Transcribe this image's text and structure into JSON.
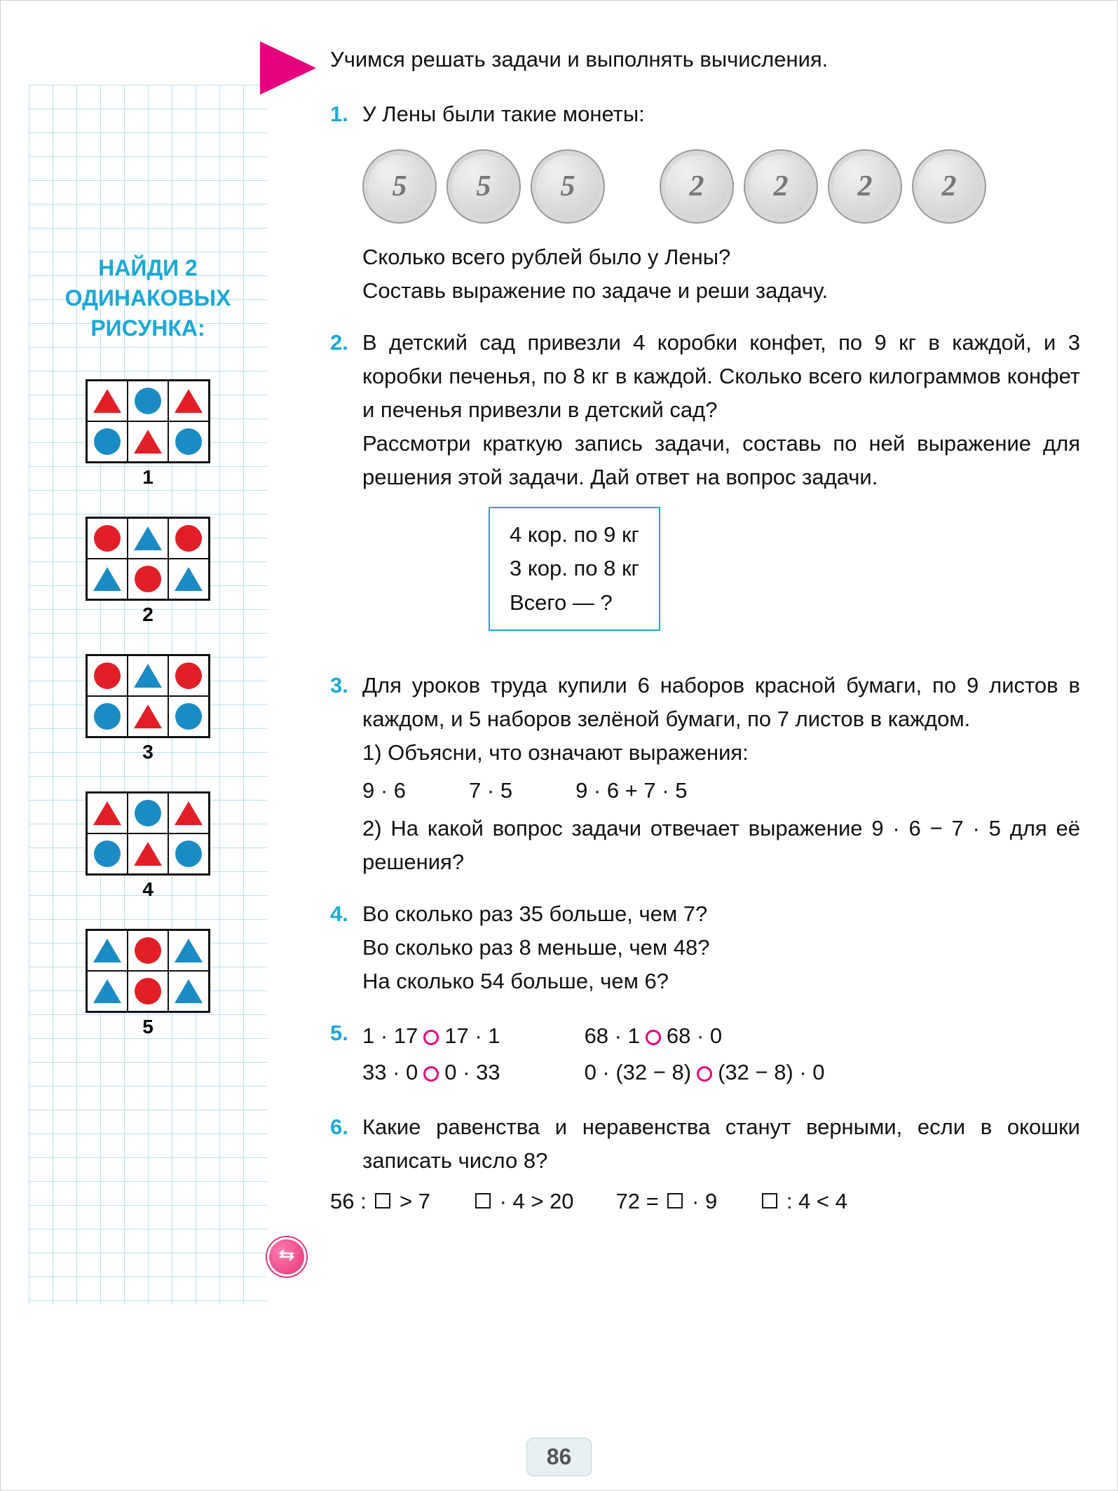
{
  "page_number": "86",
  "colors": {
    "accent": "#1ba8d6",
    "magenta": "#e6007e",
    "red": "#e21f26",
    "blue": "#1b8bc4",
    "grid": "#b8e0ee"
  },
  "sidebar": {
    "title_l1": "НАЙДИ 2",
    "title_l2": "ОДИНАКОВЫХ",
    "title_l3": "РИСУНКА:",
    "patterns": [
      {
        "label": "1",
        "cells": [
          [
            "T",
            "R"
          ],
          [
            "C",
            "B"
          ],
          [
            "T",
            "R"
          ],
          [
            "C",
            "B"
          ],
          [
            "T",
            "R"
          ],
          [
            "C",
            "B"
          ]
        ]
      },
      {
        "label": "2",
        "cells": [
          [
            "C",
            "R"
          ],
          [
            "T",
            "B"
          ],
          [
            "C",
            "R"
          ],
          [
            "T",
            "B"
          ],
          [
            "C",
            "R"
          ],
          [
            "T",
            "B"
          ]
        ]
      },
      {
        "label": "3",
        "cells": [
          [
            "C",
            "R"
          ],
          [
            "T",
            "B"
          ],
          [
            "C",
            "R"
          ],
          [
            "C",
            "B"
          ],
          [
            "T",
            "R"
          ],
          [
            "C",
            "B"
          ]
        ]
      },
      {
        "label": "4",
        "cells": [
          [
            "T",
            "R"
          ],
          [
            "C",
            "B"
          ],
          [
            "T",
            "R"
          ],
          [
            "C",
            "B"
          ],
          [
            "T",
            "R"
          ],
          [
            "C",
            "B"
          ]
        ]
      },
      {
        "label": "5",
        "cells": [
          [
            "T",
            "B"
          ],
          [
            "C",
            "R"
          ],
          [
            "T",
            "B"
          ],
          [
            "T",
            "B"
          ],
          [
            "C",
            "R"
          ],
          [
            "T",
            "B"
          ]
        ]
      }
    ]
  },
  "heading": "Учимся решать задачи и выполнять вычисления.",
  "p1": {
    "num": "1.",
    "intro": "У Лены были такие монеты:",
    "coins5": [
      "5",
      "5",
      "5"
    ],
    "coins2": [
      "2",
      "2",
      "2",
      "2"
    ],
    "q1": "Сколько всего рублей было у Лены?",
    "q2": "Составь выражение по задаче и реши задачу."
  },
  "p2": {
    "num": "2.",
    "text": "В детский сад привезли 4 коробки конфет, по 9 кг в каждой, и 3 коробки печенья, по 8 кг в каждой. Сколько всего килограммов конфет и печенья привезли в детский сад?",
    "text2": "Рассмотри краткую запись задачи, составь по ней выражение для решения этой задачи. Дай ответ на вопрос задачи.",
    "box_l1": "4 кор. по 9 кг",
    "box_l2": "3 кор. по 8 кг",
    "box_l3": "Всего — ?"
  },
  "p3": {
    "num": "3.",
    "text": "Для уроков труда купили 6 наборов красной бумаги, по 9 листов в каждом, и 5 наборов зелёной бумаги, по 7 листов в каждом.",
    "sub1": "1) Объясни, что означают выражения:",
    "e1": "9 · 6",
    "e2": "7 · 5",
    "e3": "9 · 6 + 7 · 5",
    "sub2": "2) На какой вопрос задачи отвечает выражение 9 · 6 − 7 · 5 для её решения?"
  },
  "p4": {
    "num": "4.",
    "l1": "Во сколько раз 35 больше, чем 7?",
    "l2": "Во сколько раз 8 меньше, чем 48?",
    "l3": "На сколько 54 больше, чем 6?"
  },
  "p5": {
    "num": "5.",
    "r1a": "1 · 17",
    "r1b": "17 · 1",
    "r1c": "68 · 1",
    "r1d": "68 · 0",
    "r2a": "33 · 0",
    "r2b": "0 · 33",
    "r2c": "0 · (32 − 8)",
    "r2d": "(32 − 8) · 0"
  },
  "p6": {
    "num": "6.",
    "text": "Какие равенства и неравенства станут верными, если в окошки записать число 8?",
    "e1_a": "56 :",
    "e1_b": "> 7",
    "e2_b": "· 4 > 20",
    "e3_a": "72 =",
    "e3_b": "· 9",
    "e4_b": ": 4 < 4"
  }
}
